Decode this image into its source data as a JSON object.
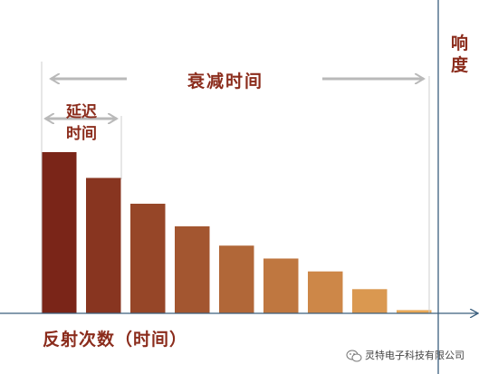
{
  "chart_data": {
    "type": "bar",
    "values": [
      100,
      84,
      68,
      54,
      42,
      34,
      26,
      15,
      2
    ],
    "ylim": [
      0,
      100
    ],
    "grid": false,
    "xlabel": "反射次数（时间）",
    "ylabel": "响度",
    "annotations": {
      "delay": "延迟时间",
      "delay_lines": [
        "延迟",
        "时间"
      ],
      "decay": "衰减时间"
    },
    "colors": {
      "bar_start": "#7a2518",
      "bar_end": "#e8a858",
      "axis": "#3b5f7e",
      "arrow": "#b9b9b9",
      "text": "#8b2c1c"
    }
  },
  "watermark": {
    "text": "灵特电子科技有限公司",
    "icon": "wechat-icon"
  }
}
